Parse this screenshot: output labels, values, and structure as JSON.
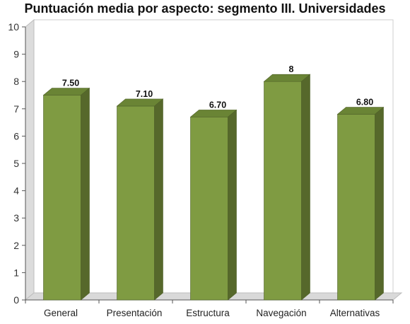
{
  "chart_data": {
    "type": "bar",
    "title": "Puntuación media por aspecto: segmento III. Universidades",
    "categories": [
      "General",
      "Presentación",
      "Estructura",
      "Navegación",
      "Alternativas"
    ],
    "values": [
      7.5,
      7.1,
      6.7,
      8,
      6.8
    ],
    "data_labels": [
      "7.50",
      "7.10",
      "6.70",
      "8",
      "6.80"
    ],
    "yticks": [
      "0",
      "1",
      "2",
      "3",
      "4",
      "5",
      "6",
      "7",
      "8",
      "9",
      "10"
    ],
    "ylim": [
      0,
      10
    ],
    "grid": false,
    "legend": "none",
    "bar_color": "#7f9b42",
    "bar_top_color": "#6a8435",
    "bar_side_color": "#56682b"
  }
}
